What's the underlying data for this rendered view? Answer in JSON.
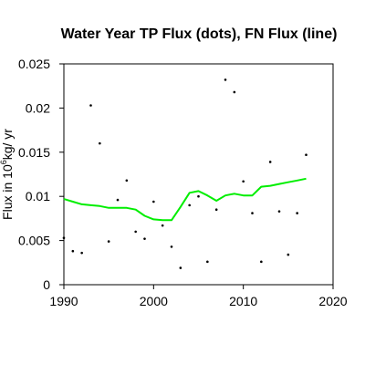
{
  "chart_data": {
    "type": "scatter",
    "title": "Water Year TP Flux (dots), FN Flux (line)",
    "xlabel": "",
    "ylabel": {
      "prefix": "Flux in 10",
      "exponent": "6",
      "suffix": "kg/ yr"
    },
    "xlim": [
      1990,
      2020
    ],
    "ylim": [
      0,
      0.025
    ],
    "x_ticks": [
      1990,
      2000,
      2010,
      2020
    ],
    "x_tick_labels": [
      "1990",
      "2000",
      "2010",
      "2020"
    ],
    "y_ticks": [
      0,
      0.005,
      0.01,
      0.015,
      0.02,
      0.025
    ],
    "y_tick_labels": [
      "0",
      "0.005",
      "0.01",
      "0.015",
      "0.02",
      "0.025"
    ],
    "grid": false,
    "series": [
      {
        "kind": "points",
        "color": "#000000",
        "x": [
          1990,
          1991,
          1992,
          1993,
          1994,
          1995,
          1996,
          1997,
          1998,
          1999,
          2000,
          2001,
          2002,
          2003,
          2004,
          2005,
          2006,
          2007,
          2008,
          2009,
          2010,
          2011,
          2012,
          2013,
          2014,
          2015,
          2016,
          2017
        ],
        "y": [
          0.0053,
          0.0038,
          0.0036,
          0.0203,
          0.016,
          0.0049,
          0.0096,
          0.0118,
          0.006,
          0.0052,
          0.0094,
          0.0067,
          0.0043,
          0.0019,
          0.009,
          0.01,
          0.0026,
          0.0085,
          0.0232,
          0.0218,
          0.0117,
          0.0081,
          0.0026,
          0.0139,
          0.0083,
          0.0034,
          0.0081,
          0.0147
        ]
      },
      {
        "kind": "line",
        "color": "#00ee00",
        "x": [
          1990,
          1991,
          1992,
          1993,
          1994,
          1995,
          1996,
          1997,
          1998,
          1999,
          2000,
          2001,
          2002,
          2003,
          2004,
          2005,
          2006,
          2007,
          2008,
          2009,
          2010,
          2011,
          2012,
          2013,
          2014,
          2015,
          2016,
          2017
        ],
        "y": [
          0.0097,
          0.0094,
          0.0091,
          0.009,
          0.0089,
          0.0087,
          0.0087,
          0.0087,
          0.0085,
          0.0078,
          0.0074,
          0.0073,
          0.0073,
          0.0088,
          0.0104,
          0.0106,
          0.0101,
          0.0095,
          0.0101,
          0.0103,
          0.0101,
          0.0101,
          0.0111,
          0.0112,
          0.0114,
          0.0116,
          0.0118,
          0.012
        ]
      }
    ]
  }
}
